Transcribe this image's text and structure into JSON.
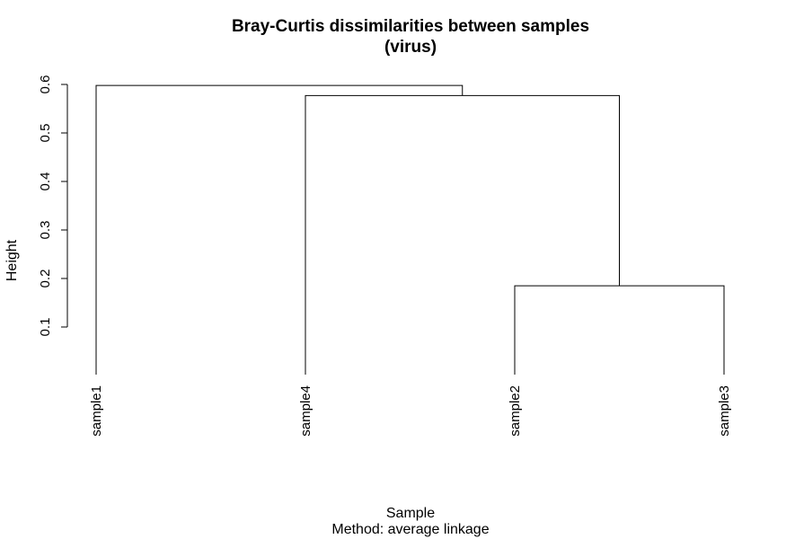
{
  "chart_data": {
    "type": "dendrogram",
    "title_line1": "Bray-Curtis dissimilarities between samples",
    "title_line2": "(virus)",
    "xlabel": "Sample",
    "sublabel": "Method: average linkage",
    "ylabel": "Height",
    "ylim": [
      0.1,
      0.6
    ],
    "yticks": [
      "0.1",
      "0.2",
      "0.3",
      "0.4",
      "0.5",
      "0.6"
    ],
    "leaf_order": [
      "sample1",
      "sample4",
      "sample2",
      "sample3"
    ],
    "merges": [
      {
        "left": "sample2",
        "right": "sample3",
        "height": 0.185
      },
      {
        "left": "sample4",
        "right": "sample2+sample3",
        "height": 0.577
      },
      {
        "left": "sample1",
        "right": "sample4+sample2+sample3",
        "height": 0.598
      }
    ]
  }
}
